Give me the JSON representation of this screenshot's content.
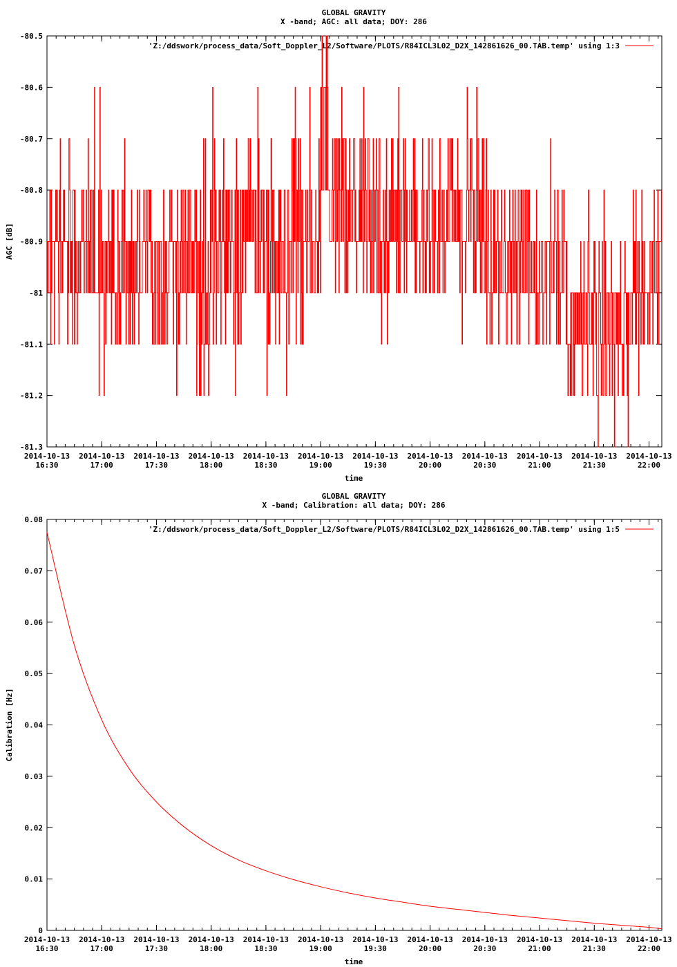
{
  "chart_data": [
    {
      "type": "line",
      "title": "GLOBAL GRAVITY",
      "subtitle": "X -band; AGC: all data; DOY: 286",
      "xlabel": "time",
      "ylabel": "AGC [dB]",
      "ylim": [
        -81.3,
        -80.5
      ],
      "yticks": [
        "-80.5",
        "-80.6",
        "-80.7",
        "-80.8",
        "-80.9",
        "-81",
        "-81.1",
        "-81.2",
        "-81.3"
      ],
      "xticks": [
        [
          "2014-10-13",
          "16:30"
        ],
        [
          "2014-10-13",
          "17:00"
        ],
        [
          "2014-10-13",
          "17:30"
        ],
        [
          "2014-10-13",
          "18:00"
        ],
        [
          "2014-10-13",
          "18:30"
        ],
        [
          "2014-10-13",
          "19:00"
        ],
        [
          "2014-10-13",
          "19:30"
        ],
        [
          "2014-10-13",
          "20:00"
        ],
        [
          "2014-10-13",
          "20:30"
        ],
        [
          "2014-10-13",
          "21:00"
        ],
        [
          "2014-10-13",
          "21:30"
        ],
        [
          "2014-10-13",
          "22:00"
        ]
      ],
      "xlim": [
        "16:30",
        "22:07"
      ],
      "grid": false,
      "legend_position": "top-right",
      "color": "#ff0000",
      "series": [
        {
          "name": "'Z:/ddswork/process_data/Soft_Doppler_L2/Software/PLOTS/R84ICL3L02_D2X_142861626_00.TAB.temp' using 1:3",
          "segments": [
            {
              "t_start": "16:30",
              "t_end": "16:55",
              "levels": [
                -80.7,
                -80.8,
                -80.9,
                -81.0,
                -81.1
              ]
            },
            {
              "t_start": "16:55",
              "t_end": "17:00",
              "levels": [
                -80.6,
                -80.8,
                -81.0,
                -81.2
              ]
            },
            {
              "t_start": "17:00",
              "t_end": "18:00",
              "levels": [
                -80.7,
                -80.8,
                -80.9,
                -81.0,
                -81.1,
                -81.2
              ]
            },
            {
              "t_start": "18:00",
              "t_end": "19:00",
              "levels": [
                -80.6,
                -80.7,
                -80.8,
                -80.9,
                -81.0,
                -81.1,
                -81.2
              ]
            },
            {
              "t_start": "19:00",
              "t_end": "19:05",
              "levels": [
                -80.5,
                -80.6,
                -80.8,
                -81.0
              ]
            },
            {
              "t_start": "19:05",
              "t_end": "20:30",
              "levels": [
                -80.6,
                -80.7,
                -80.8,
                -80.9,
                -81.0,
                -81.1
              ]
            },
            {
              "t_start": "20:30",
              "t_end": "21:15",
              "levels": [
                -80.7,
                -80.8,
                -80.9,
                -81.0,
                -81.1,
                -81.2
              ]
            },
            {
              "t_start": "21:15",
              "t_end": "21:50",
              "levels": [
                -80.8,
                -80.9,
                -81.0,
                -81.1,
                -81.2,
                -81.3
              ]
            },
            {
              "t_start": "21:50",
              "t_end": "22:07",
              "levels": [
                -80.8,
                -80.9,
                -81.0,
                -81.1,
                -81.2
              ]
            }
          ]
        }
      ]
    },
    {
      "type": "line",
      "title": "GLOBAL GRAVITY",
      "subtitle": "X -band; Calibration: all data; DOY: 286",
      "xlabel": "time",
      "ylabel": "Calibration [Hz]",
      "ylim": [
        0,
        0.08
      ],
      "yticks": [
        "0.08",
        "0.07",
        "0.06",
        "0.05",
        "0.04",
        "0.03",
        "0.02",
        "0.01",
        "0"
      ],
      "xticks": [
        [
          "2014-10-13",
          "16:30"
        ],
        [
          "2014-10-13",
          "17:00"
        ],
        [
          "2014-10-13",
          "17:30"
        ],
        [
          "2014-10-13",
          "18:00"
        ],
        [
          "2014-10-13",
          "18:30"
        ],
        [
          "2014-10-13",
          "19:00"
        ],
        [
          "2014-10-13",
          "19:30"
        ],
        [
          "2014-10-13",
          "20:00"
        ],
        [
          "2014-10-13",
          "20:30"
        ],
        [
          "2014-10-13",
          "21:00"
        ],
        [
          "2014-10-13",
          "21:30"
        ],
        [
          "2014-10-13",
          "22:00"
        ]
      ],
      "xlim": [
        "16:30",
        "22:07"
      ],
      "grid": false,
      "legend_position": "top-right",
      "color": "#ff0000",
      "series": [
        {
          "name": "'Z:/ddswork/process_data/Soft_Doppler_L2/Software/PLOTS/R84ICL3L02_D2X_142861626_00.TAB.temp' using 1:5",
          "x": [
            "16:30",
            "16:45",
            "17:00",
            "17:15",
            "17:30",
            "17:45",
            "18:00",
            "18:15",
            "18:30",
            "18:45",
            "19:00",
            "19:15",
            "19:30",
            "19:45",
            "20:00",
            "20:15",
            "20:30",
            "20:45",
            "21:00",
            "21:15",
            "21:30",
            "21:45",
            "22:00",
            "22:07"
          ],
          "y": [
            0.0775,
            0.0555,
            0.041,
            0.0315,
            0.025,
            0.0202,
            0.0165,
            0.0137,
            0.0116,
            0.0099,
            0.0085,
            0.0073,
            0.0063,
            0.0055,
            0.0047,
            0.0041,
            0.0035,
            0.0029,
            0.0024,
            0.0019,
            0.0014,
            0.001,
            0.0006,
            0.0003
          ]
        }
      ]
    }
  ]
}
